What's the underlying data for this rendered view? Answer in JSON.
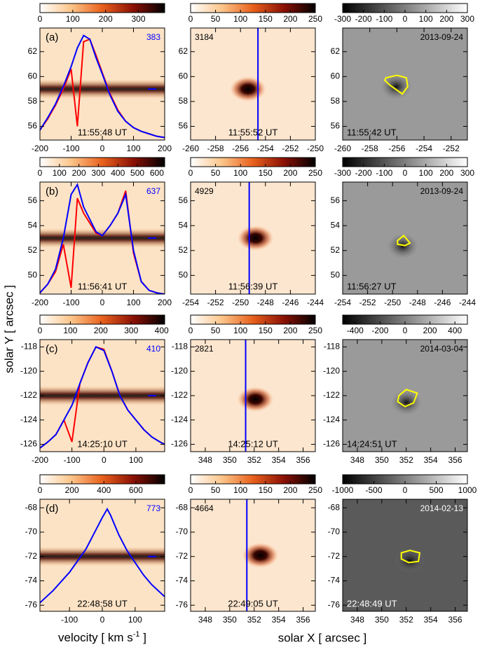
{
  "figure": {
    "y_label": "solar Y [ arcsec ]",
    "x_label_left": [
      "velocity [ km s",
      "-1",
      " ]"
    ],
    "x_label_mid": "solar X [ arcsec ]"
  },
  "chart_data": [
    {
      "type": "spectrum",
      "panel": "(a)",
      "number": "383",
      "time": "11:55:48 UT",
      "xlim": [
        -200,
        200
      ],
      "xticks": [
        -200,
        -100,
        0,
        100,
        200
      ],
      "ylim": [
        54.9,
        63.9
      ],
      "yticks": [
        56,
        58,
        60,
        62
      ],
      "clim": [
        0,
        380
      ],
      "cticks": [
        0,
        100,
        200,
        300
      ],
      "marker_y": 59,
      "x": [
        -200,
        -175,
        -150,
        -125,
        -100,
        -80,
        -60,
        -40,
        -20,
        0,
        25,
        50,
        75,
        100,
        125,
        150,
        175,
        200
      ],
      "series": [
        {
          "color": "#ff0000",
          "values": [
            55.7,
            56.6,
            57.7,
            59.0,
            60.6,
            56.0,
            62.8,
            63.0,
            61.7,
            60.3,
            58.6,
            57.3,
            56.4,
            55.9,
            55.6,
            55.4,
            55.2,
            55.1
          ]
        },
        {
          "color": "#0000ff",
          "values": [
            55.7,
            56.7,
            57.8,
            59.2,
            60.8,
            62.3,
            63.3,
            63.0,
            61.5,
            60.2,
            58.5,
            57.2,
            56.4,
            55.9,
            55.6,
            55.4,
            55.2,
            55.1
          ]
        }
      ]
    },
    {
      "type": "image",
      "number": "3184",
      "time": "11:55:52 UT",
      "xlim": [
        -260,
        -250
      ],
      "xticks": [
        -260,
        -258,
        -256,
        -254,
        -252,
        -250
      ],
      "ylim": [
        54.9,
        63.9
      ],
      "yticks": [
        56,
        58,
        60,
        62
      ],
      "clim": [
        0,
        250
      ],
      "cticks": [
        0,
        50,
        100,
        150,
        200,
        250
      ],
      "slit_x": -254.6,
      "peak": [
        -255.4,
        59
      ]
    },
    {
      "type": "magnetogram",
      "date": "2013-09-24",
      "time": "11:55:42 UT",
      "xlim": [
        -260,
        -250.8
      ],
      "xticks": [
        -260,
        -258,
        -256,
        -254,
        -252
      ],
      "ylim": [
        54.9,
        63.9
      ],
      "yticks": [
        56,
        58,
        60,
        62
      ],
      "clim": [
        -300,
        300
      ],
      "cticks": [
        -300,
        -200,
        -100,
        0,
        100,
        200,
        300
      ],
      "contour": {
        "x": [
          -256.8,
          -256,
          -255.3,
          -255.2,
          -255.6,
          -256.5,
          -256.9
        ],
        "y": [
          59.9,
          60.1,
          59.9,
          59.2,
          58.6,
          59.3,
          59.7
        ]
      }
    },
    {
      "type": "spectrum",
      "panel": "(b)",
      "number": "637",
      "time": "11:56:41 UT",
      "xlim": [
        -200,
        200
      ],
      "xticks": [
        -200,
        -100,
        0,
        100,
        200
      ],
      "ylim": [
        48.5,
        57.5
      ],
      "yticks": [
        50,
        52,
        54,
        56
      ],
      "clim": [
        0,
        640
      ],
      "cticks": [
        0,
        100,
        200,
        300,
        400,
        500,
        600
      ],
      "marker_y": 53,
      "x": [
        -200,
        -175,
        -150,
        -125,
        -100,
        -80,
        -60,
        -40,
        -20,
        0,
        25,
        50,
        75,
        100,
        125,
        150,
        175,
        200
      ],
      "series": [
        {
          "color": "#ff0000",
          "values": [
            48.6,
            49.3,
            50.3,
            52.5,
            49,
            56.2,
            55,
            54.2,
            53.4,
            53.2,
            54,
            55,
            56.8,
            51.8,
            49.5,
            48.8,
            48.6,
            48.5
          ]
        },
        {
          "color": "#0000ff",
          "values": [
            48.6,
            49.3,
            50.5,
            53,
            56.5,
            57.3,
            55.5,
            54.5,
            53.5,
            53.2,
            54,
            55,
            56.5,
            52,
            49.5,
            48.8,
            48.6,
            48.5
          ]
        }
      ]
    },
    {
      "type": "image",
      "number": "4929",
      "time": "11:56:39 UT",
      "xlim": [
        -254,
        -244
      ],
      "xticks": [
        -254,
        -252,
        -250,
        -248,
        -246,
        -244
      ],
      "ylim": [
        48.5,
        57.5
      ],
      "yticks": [
        50,
        52,
        54,
        56
      ],
      "clim": [
        0,
        250
      ],
      "cticks": [
        0,
        50,
        100,
        150,
        200,
        250
      ],
      "slit_x": -249.3,
      "peak": [
        -248.8,
        53
      ]
    },
    {
      "type": "magnetogram",
      "date": "2013-09-24",
      "time": "11:56:27 UT",
      "xlim": [
        -254,
        -244
      ],
      "xticks": [
        -254,
        -252,
        -250,
        -248,
        -246,
        -244
      ],
      "ylim": [
        48.5,
        57.5
      ],
      "yticks": [
        50,
        52,
        54,
        56
      ],
      "clim": [
        -300,
        300
      ],
      "cticks": [
        -300,
        -200,
        -100,
        0,
        100,
        200,
        300
      ],
      "contour": {
        "x": [
          -249.6,
          -249.1,
          -248.6,
          -249.0,
          -249.6
        ],
        "y": [
          52.8,
          53.2,
          52.6,
          52.4,
          52.5
        ]
      }
    },
    {
      "type": "spectrum",
      "panel": "(c)",
      "number": "410",
      "time": "14:25:10 UT",
      "xlim": [
        -200,
        190
      ],
      "xticks": [
        -200,
        -100,
        0,
        100
      ],
      "ylim": [
        -126.6,
        -117.4
      ],
      "yticks": [
        -126,
        -124,
        -122,
        -120,
        -118
      ],
      "clim": [
        0,
        410
      ],
      "cticks": [
        0,
        100,
        200,
        300,
        400
      ],
      "marker_y": -122,
      "x": [
        -200,
        -175,
        -150,
        -125,
        -100,
        -75,
        -50,
        -25,
        0,
        25,
        50,
        75,
        100,
        125,
        150,
        175,
        190
      ],
      "series": [
        {
          "color": "#ff0000",
          "values": [
            -126.3,
            -125.8,
            -125.2,
            -124,
            -125.8,
            -121,
            -119.3,
            -118,
            -118.2,
            -120,
            -122,
            -123.2,
            -124,
            -124.8,
            -125.4,
            -125.8,
            -126
          ]
        },
        {
          "color": "#0000ff",
          "values": [
            -126.3,
            -125.8,
            -125.2,
            -124,
            -122.8,
            -121,
            -119.3,
            -118,
            -118.3,
            -120,
            -122,
            -123.2,
            -124,
            -124.8,
            -125.4,
            -125.8,
            -126
          ]
        }
      ]
    },
    {
      "type": "image",
      "number": "2821",
      "time": "14:25:12 UT",
      "xlim": [
        346.8,
        357
      ],
      "xticks": [
        348,
        350,
        352,
        354,
        356
      ],
      "ylim": [
        -126.6,
        -117.4
      ],
      "yticks": [
        -126,
        -124,
        -122,
        -120,
        -118
      ],
      "clim": [
        0,
        250
      ],
      "cticks": [
        0,
        50,
        100,
        150,
        200,
        250
      ],
      "slit_x": 351.3,
      "peak": [
        352.1,
        -122.3
      ]
    },
    {
      "type": "magnetogram",
      "date": "2014-03-04",
      "time": "14:24:51 UT",
      "xlim": [
        346.8,
        357
      ],
      "xticks": [
        348,
        350,
        352,
        354,
        356
      ],
      "ylim": [
        -126.6,
        -117.4
      ],
      "yticks": [
        -126,
        -124,
        -122,
        -120,
        -118
      ],
      "clim": [
        -500,
        500
      ],
      "cticks": [
        -400,
        -200,
        0,
        200,
        400
      ],
      "contour": {
        "x": [
          351.4,
          352.0,
          352.9,
          352.6,
          351.9,
          351.3
        ],
        "y": [
          -122.0,
          -121.5,
          -121.8,
          -122.6,
          -122.9,
          -122.5
        ]
      }
    },
    {
      "type": "spectrum",
      "panel": "(d)",
      "number": "773",
      "time": "22:48:58 UT",
      "xlim": [
        -190,
        190
      ],
      "xticks": [
        -100,
        0,
        100
      ],
      "ylim": [
        -76.5,
        -67.3
      ],
      "yticks": [
        -76,
        -74,
        -72,
        -70,
        -68
      ],
      "clim": [
        0,
        780
      ],
      "cticks": [
        0,
        200,
        400,
        600
      ],
      "marker_y": -72,
      "x": [
        -190,
        -150,
        -100,
        -50,
        0,
        15,
        25,
        50,
        75,
        100,
        125,
        150,
        190
      ],
      "series": [
        {
          "color": "#0000ff",
          "values": [
            -75.8,
            -74.8,
            -73.3,
            -71.4,
            -68.8,
            -68.1,
            -68.6,
            -70.2,
            -71.5,
            -72.5,
            -73.5,
            -74.3,
            -75.3
          ]
        }
      ]
    },
    {
      "type": "image",
      "number": "4664",
      "time": "22:49:05 UT",
      "xlim": [
        346.8,
        357
      ],
      "xticks": [
        348,
        350,
        352,
        354,
        356
      ],
      "ylim": [
        -76.5,
        -67.3
      ],
      "yticks": [
        -76,
        -74,
        -72,
        -70,
        -68
      ],
      "clim": [
        0,
        250
      ],
      "cticks": [
        0,
        50,
        100,
        150,
        200,
        250
      ],
      "slit_x": 351.4,
      "peak": [
        352.5,
        -71.9
      ]
    },
    {
      "type": "magnetogram",
      "date": "2014-02-13",
      "time": "22:48:49 UT",
      "label_color": "#ffffff",
      "xlim": [
        346.8,
        357
      ],
      "xticks": [
        348,
        350,
        352,
        354,
        356
      ],
      "ylim": [
        -76.5,
        -67.3
      ],
      "yticks": [
        -76,
        -74,
        -72,
        -70,
        -68
      ],
      "clim": [
        -1000,
        1000
      ],
      "cticks": [
        -1000,
        -500,
        0,
        500,
        1000
      ],
      "contour": {
        "x": [
          351.6,
          352.3,
          353.1,
          353.0,
          352.2,
          351.6
        ],
        "y": [
          -71.7,
          -71.5,
          -71.7,
          -72.4,
          -72.5,
          -72.2
        ]
      }
    }
  ]
}
